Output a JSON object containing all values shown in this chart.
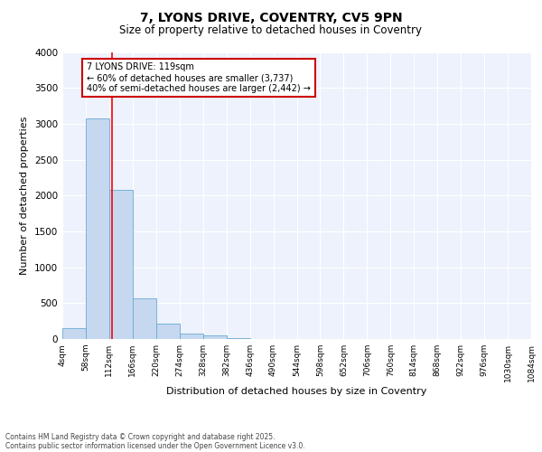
{
  "title1": "7, LYONS DRIVE, COVENTRY, CV5 9PN",
  "title2": "Size of property relative to detached houses in Coventry",
  "xlabel": "Distribution of detached houses by size in Coventry",
  "ylabel": "Number of detached properties",
  "bin_edges": [
    4,
    58,
    112,
    166,
    220,
    274,
    328,
    382,
    436,
    490,
    544,
    598,
    652,
    706,
    760,
    814,
    868,
    922,
    976,
    1030,
    1084
  ],
  "bar_heights": [
    150,
    3080,
    2080,
    570,
    220,
    70,
    50,
    15,
    5,
    0,
    0,
    0,
    0,
    0,
    0,
    0,
    0,
    0,
    0,
    0
  ],
  "bar_color": "#c5d8f0",
  "bar_edge_color": "#6aaad4",
  "red_line_x": 119,
  "annotation_text": "7 LYONS DRIVE: 119sqm\n← 60% of detached houses are smaller (3,737)\n40% of semi-detached houses are larger (2,442) →",
  "annotation_box_color": "#ffffff",
  "annotation_box_edge": "#cc0000",
  "ylim": [
    0,
    4000
  ],
  "yticks": [
    0,
    500,
    1000,
    1500,
    2000,
    2500,
    3000,
    3500,
    4000
  ],
  "background_color": "#edf2fc",
  "footer_line1": "Contains HM Land Registry data © Crown copyright and database right 2025.",
  "footer_line2": "Contains public sector information licensed under the Open Government Licence v3.0."
}
